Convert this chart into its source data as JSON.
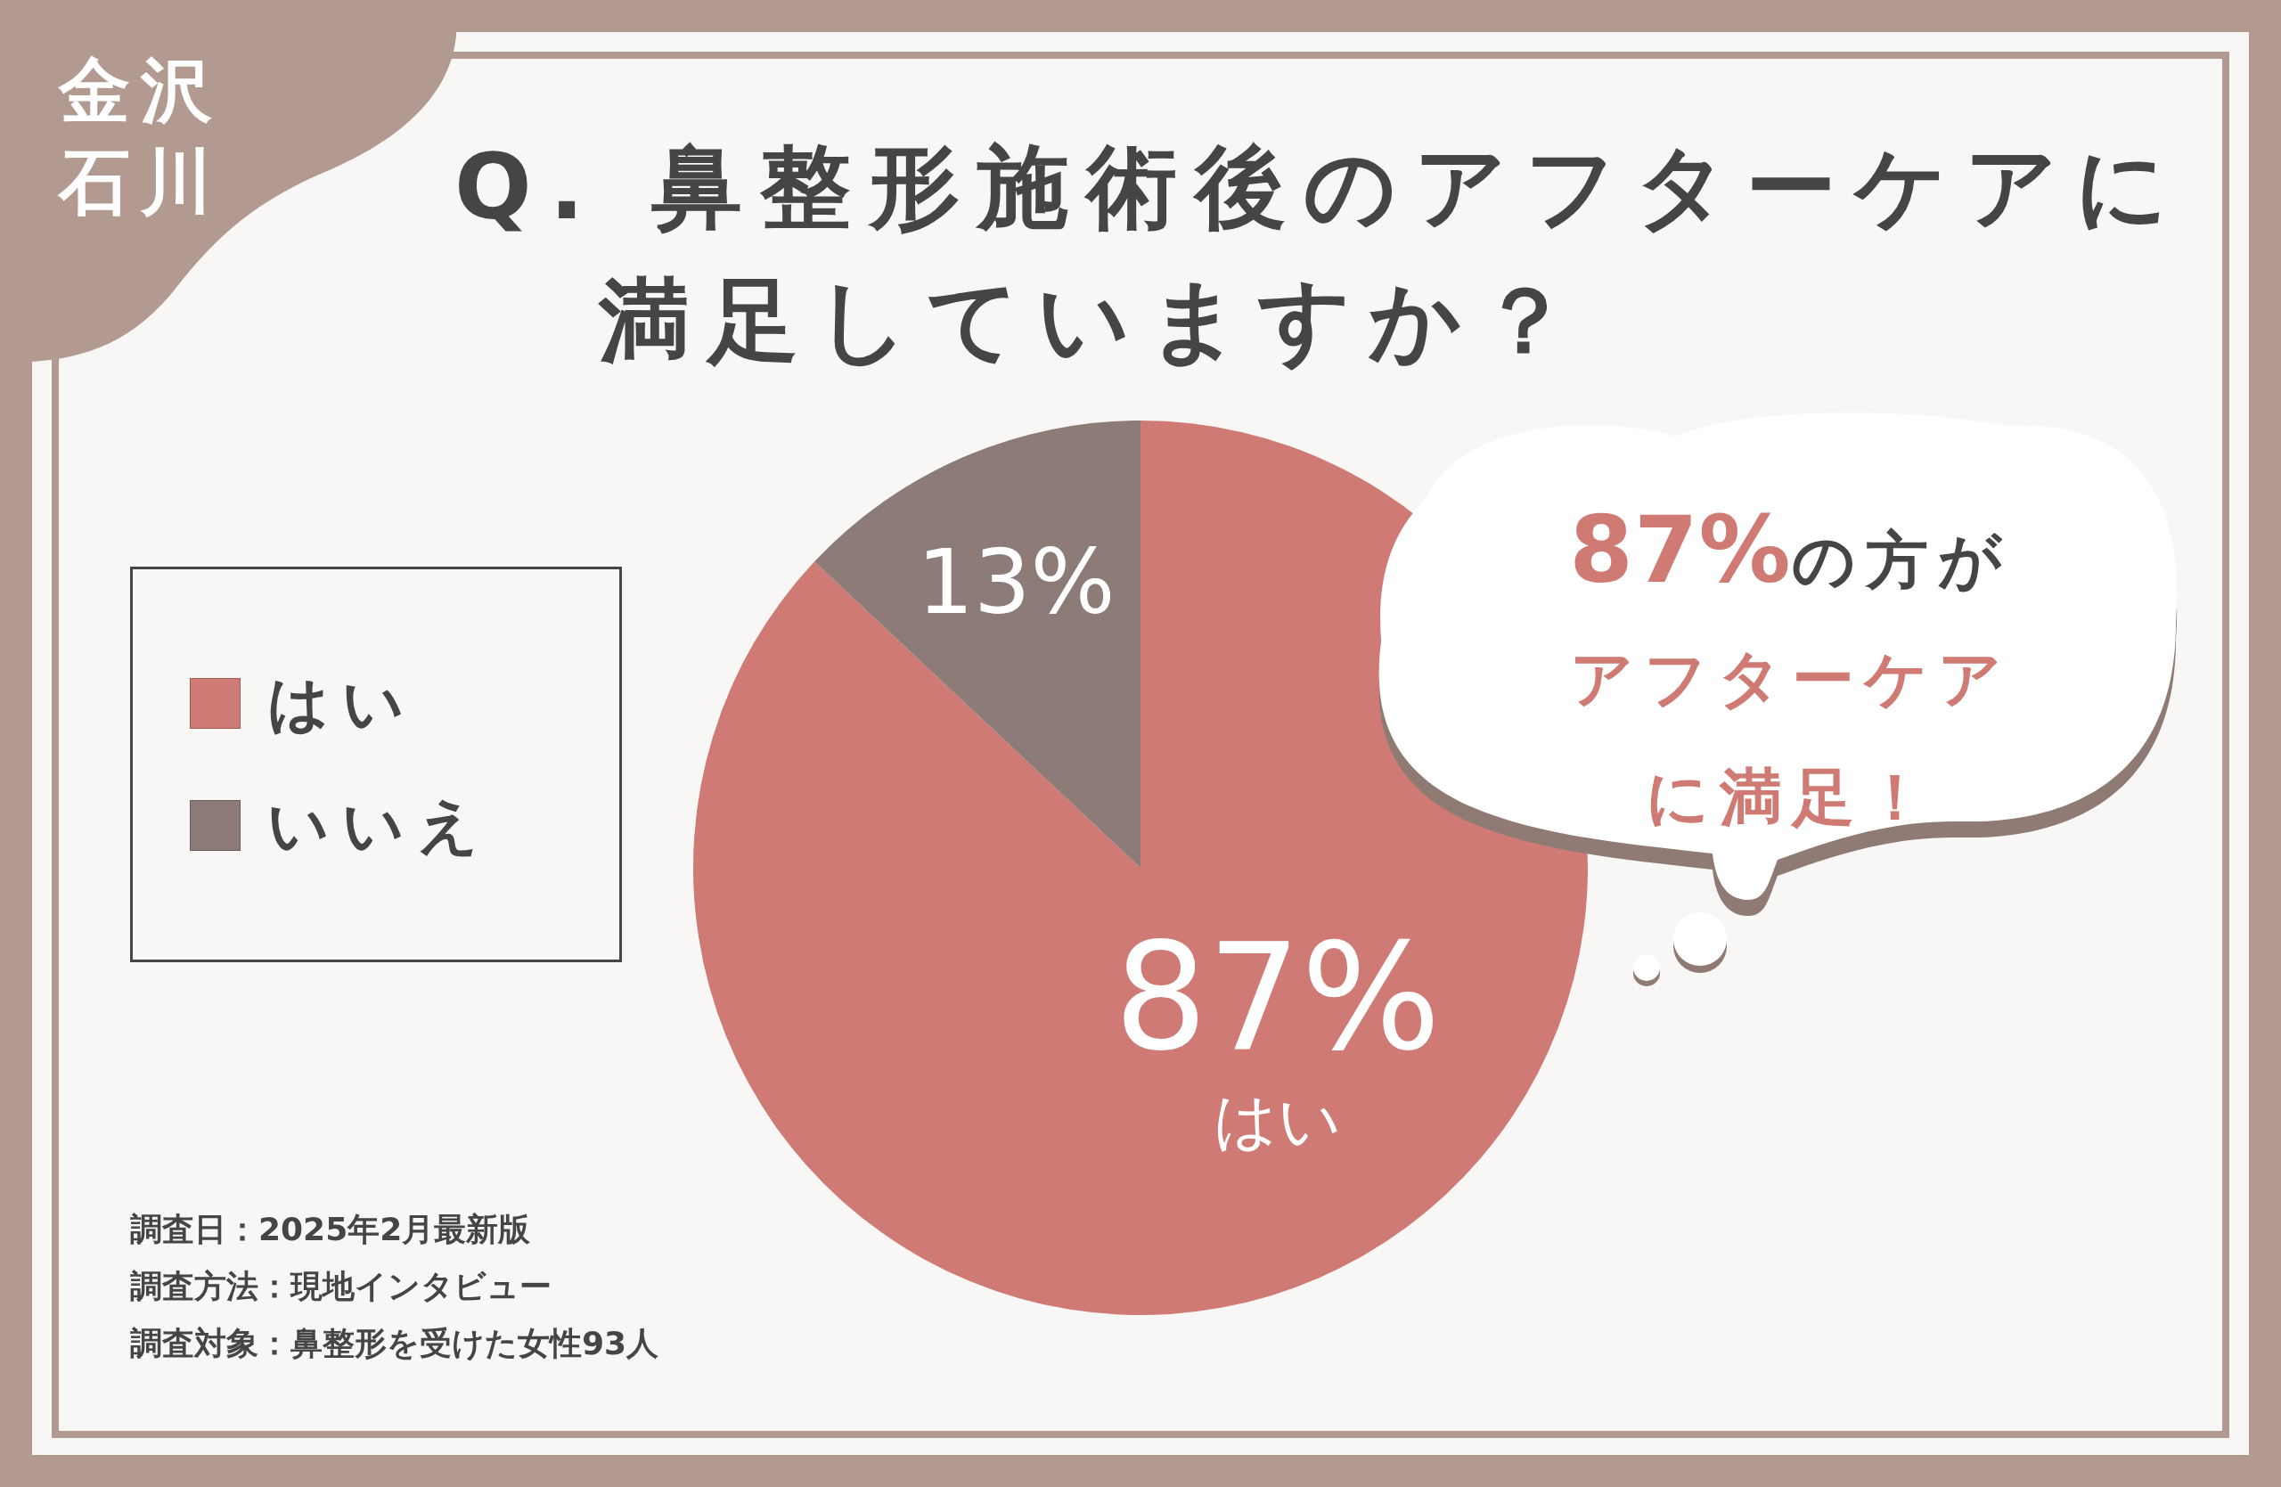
{
  "chart_data": {
    "type": "pie",
    "title": "Q. 鼻整形施術後のアフターケアに満足していますか？",
    "categories": [
      "はい",
      "いいえ"
    ],
    "values": [
      87,
      13
    ],
    "colors": [
      "#cf7a74",
      "#8c7b77"
    ],
    "value_labels": [
      "87%\nはい",
      "13%"
    ],
    "legend": "left",
    "annotations": [
      "金沢石川",
      "87%の方がアフターケアに満足！",
      "調査日：2025年2月最新版",
      "調査方法：現地インタビュー",
      "調査対象：鼻整形を受けた女性93人"
    ]
  }
}
